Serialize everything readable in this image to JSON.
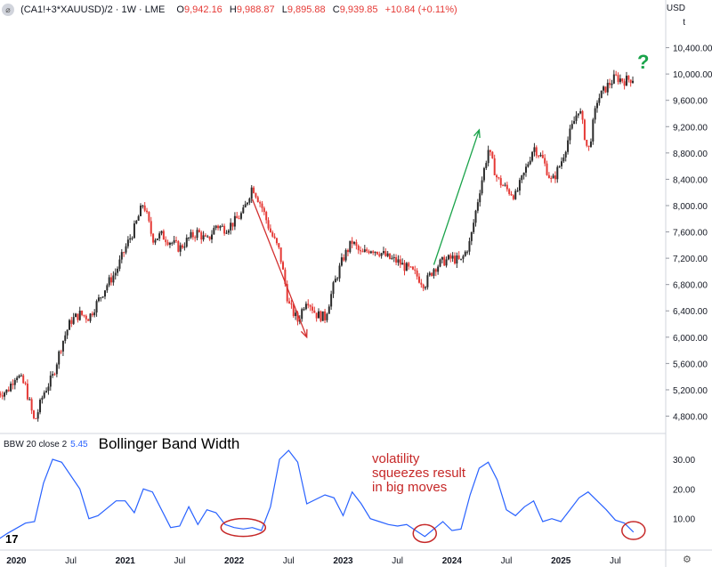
{
  "header": {
    "symbol_icon": "symbol-logo-icon",
    "title": "(CA1!+3*XAUUSD)/2 · 1W · LME",
    "o_label": "O",
    "o_value": "9,942.16",
    "h_label": "H",
    "h_value": "9,988.87",
    "l_label": "L",
    "l_value": "9,895.88",
    "c_label": "C",
    "c_value": "9,939.85",
    "change": "+10.84 (+0.11%)"
  },
  "currency": "USD",
  "currency_sub": "t",
  "indicator": {
    "name": "BBW 20 close 2",
    "value": "5.45",
    "title": "Bollinger Band Width"
  },
  "annotation": [
    "volatility",
    "squeezes result",
    "in big moves"
  ],
  "question_mark": "?",
  "tv_logo": "17",
  "colors": {
    "up": "#26a69a",
    "down": "#e53935",
    "candle_up": "#2b2b2b",
    "candle_down": "#e53935",
    "bbw": "#2962ff",
    "arrow_down": "#d32f2f",
    "arrow_up": "#1aa34a",
    "circle": "#c62828"
  },
  "chart_data": [
    {
      "type": "candlestick",
      "title": "(CA1!+3*XAUUSD)/2 · 1W · LME",
      "x_ticks": [
        "2020",
        "Jul",
        "2021",
        "Jul",
        "2022",
        "Jul",
        "2023",
        "Jul",
        "2024",
        "Jul",
        "2025",
        "Jul"
      ],
      "y_ticks": [
        "10,400.00",
        "10,000.00",
        "9,600.00",
        "9,200.00",
        "8,800.00",
        "8,400.00",
        "8,000.00",
        "7,600.00",
        "7,200.00",
        "6,800.00",
        "6,400.00",
        "6,000.00",
        "5,600.00",
        "5,200.00",
        "4,800.00"
      ],
      "y_range": [
        4550,
        10800
      ],
      "close_path": [
        [
          "2019-11",
          5150
        ],
        [
          "2019-12",
          5180
        ],
        [
          "2020-01",
          5450
        ],
        [
          "2020-02",
          5250
        ],
        [
          "2020-03",
          4700
        ],
        [
          "2020-04",
          5150
        ],
        [
          "2020-05",
          5400
        ],
        [
          "2020-06",
          5900
        ],
        [
          "2020-07",
          6250
        ],
        [
          "2020-08",
          6350
        ],
        [
          "2020-09",
          6300
        ],
        [
          "2020-10",
          6550
        ],
        [
          "2020-11",
          6800
        ],
        [
          "2020-12",
          7000
        ],
        [
          "2021-01",
          7350
        ],
        [
          "2021-02",
          7650
        ],
        [
          "2021-03",
          8050
        ],
        [
          "2021-04",
          7500
        ],
        [
          "2021-05",
          7550
        ],
        [
          "2021-06",
          7450
        ],
        [
          "2021-07",
          7350
        ],
        [
          "2021-08",
          7500
        ],
        [
          "2021-09",
          7600
        ],
        [
          "2021-10",
          7450
        ],
        [
          "2021-11",
          7700
        ],
        [
          "2021-12",
          7650
        ],
        [
          "2022-01",
          7750
        ],
        [
          "2022-02",
          7900
        ],
        [
          "2022-03",
          8300
        ],
        [
          "2022-04",
          8000
        ],
        [
          "2022-05",
          7600
        ],
        [
          "2022-06",
          7300
        ],
        [
          "2022-07",
          6500
        ],
        [
          "2022-08",
          6250
        ],
        [
          "2022-09",
          6600
        ],
        [
          "2022-10",
          6350
        ],
        [
          "2022-11",
          6300
        ],
        [
          "2022-12",
          6800
        ],
        [
          "2023-01",
          7200
        ],
        [
          "2023-02",
          7450
        ],
        [
          "2023-03",
          7250
        ],
        [
          "2023-04",
          7350
        ],
        [
          "2023-05",
          7300
        ],
        [
          "2023-06",
          7200
        ],
        [
          "2023-07",
          7150
        ],
        [
          "2023-08",
          7050
        ],
        [
          "2023-09",
          6950
        ],
        [
          "2023-10",
          6800
        ],
        [
          "2023-11",
          7050
        ],
        [
          "2023-12",
          7150
        ],
        [
          "2024-01",
          7200
        ],
        [
          "2024-02",
          7150
        ],
        [
          "2024-03",
          7450
        ],
        [
          "2024-04",
          8200
        ],
        [
          "2024-05",
          8850
        ],
        [
          "2024-06",
          8400
        ],
        [
          "2024-07",
          8250
        ],
        [
          "2024-08",
          8150
        ],
        [
          "2024-09",
          8500
        ],
        [
          "2024-10",
          8900
        ],
        [
          "2024-11",
          8700
        ],
        [
          "2024-12",
          8350
        ],
        [
          "2025-01",
          8650
        ],
        [
          "2025-02",
          9100
        ],
        [
          "2025-03",
          9500
        ],
        [
          "2025-04",
          8800
        ],
        [
          "2025-05",
          9600
        ],
        [
          "2025-06",
          9800
        ],
        [
          "2025-07",
          9950
        ],
        [
          "2025-08",
          9900
        ],
        [
          "2025-09",
          9940
        ]
      ],
      "annotations": [
        {
          "kind": "arrow",
          "from": [
            "2022-03",
            8100
          ],
          "to": [
            "2022-09",
            6000
          ],
          "color": "red"
        },
        {
          "kind": "arrow",
          "from": [
            "2023-11",
            7100
          ],
          "to": [
            "2024-04",
            9150
          ],
          "color": "green"
        },
        {
          "kind": "text",
          "text": "?",
          "at": [
            "2025-08",
            10300
          ]
        }
      ]
    },
    {
      "type": "line",
      "title": "Bollinger Band Width",
      "series": [
        {
          "name": "BBW 20 close 2",
          "last_value": 5.45
        }
      ],
      "y_ticks": [
        "30.00",
        "20.00",
        "10.00"
      ],
      "y_range": [
        0,
        36
      ],
      "points": [
        [
          "2019-11",
          3
        ],
        [
          "2019-12",
          5
        ],
        [
          "2020-02",
          8.5
        ],
        [
          "2020-03",
          9
        ],
        [
          "2020-04",
          22
        ],
        [
          "2020-05",
          30
        ],
        [
          "2020-06",
          29
        ],
        [
          "2020-08",
          20
        ],
        [
          "2020-09",
          10
        ],
        [
          "2020-10",
          11
        ],
        [
          "2020-12",
          16
        ],
        [
          "2021-01",
          16
        ],
        [
          "2021-02",
          12
        ],
        [
          "2021-03",
          20
        ],
        [
          "2021-04",
          19
        ],
        [
          "2021-06",
          7
        ],
        [
          "2021-07",
          7.5
        ],
        [
          "2021-08",
          14
        ],
        [
          "2021-09",
          8
        ],
        [
          "2021-10",
          13
        ],
        [
          "2021-11",
          12
        ],
        [
          "2021-12",
          8
        ],
        [
          "2022-01",
          7
        ],
        [
          "2022-02",
          6.5
        ],
        [
          "2022-03",
          7
        ],
        [
          "2022-04",
          6
        ],
        [
          "2022-05",
          14
        ],
        [
          "2022-06",
          30
        ],
        [
          "2022-07",
          33
        ],
        [
          "2022-08",
          29
        ],
        [
          "2022-09",
          15
        ],
        [
          "2022-11",
          18
        ],
        [
          "2022-12",
          17
        ],
        [
          "2023-01",
          11
        ],
        [
          "2023-02",
          19
        ],
        [
          "2023-03",
          15
        ],
        [
          "2023-04",
          10
        ],
        [
          "2023-05",
          9
        ],
        [
          "2023-06",
          8
        ],
        [
          "2023-07",
          7.5
        ],
        [
          "2023-08",
          8
        ],
        [
          "2023-09",
          6
        ],
        [
          "2023-10",
          4
        ],
        [
          "2023-11",
          6.5
        ],
        [
          "2023-12",
          9
        ],
        [
          "2024-01",
          6
        ],
        [
          "2024-02",
          6.5
        ],
        [
          "2024-03",
          18
        ],
        [
          "2024-04",
          27
        ],
        [
          "2024-05",
          29
        ],
        [
          "2024-06",
          23
        ],
        [
          "2024-07",
          13
        ],
        [
          "2024-08",
          11
        ],
        [
          "2024-09",
          14
        ],
        [
          "2024-10",
          16
        ],
        [
          "2024-11",
          9
        ],
        [
          "2024-12",
          10
        ],
        [
          "2025-01",
          9
        ],
        [
          "2025-02",
          13
        ],
        [
          "2025-03",
          17
        ],
        [
          "2025-04",
          19
        ],
        [
          "2025-05",
          16
        ],
        [
          "2025-06",
          13
        ],
        [
          "2025-07",
          9.5
        ],
        [
          "2025-08",
          8.5
        ],
        [
          "2025-09",
          5.45
        ]
      ],
      "squeeze_circles": [
        [
          "2022-02",
          7
        ],
        [
          "2023-10",
          5
        ],
        [
          "2025-09",
          6
        ]
      ]
    }
  ]
}
